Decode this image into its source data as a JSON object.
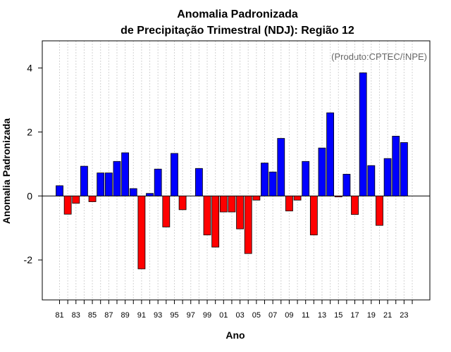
{
  "chart_data": {
    "type": "bar",
    "title": "Anomalia Padronizada",
    "subtitle": "de Precipitação Trimestral (NDJ): Região 12",
    "xlabel": "Ano",
    "ylabel": "Anomalia Padronizada",
    "source_note": "(Produto:CPTEC/INPE)",
    "ylim": [
      -3.25,
      4.85
    ],
    "yticks": [
      "-2",
      "0",
      "2",
      "4"
    ],
    "ytick_values": [
      -2,
      0,
      2,
      4
    ],
    "xtick_labels": [
      "81",
      "83",
      "85",
      "87",
      "89",
      "91",
      "93",
      "95",
      "97",
      "99",
      "01",
      "03",
      "05",
      "07",
      "09",
      "11",
      "13",
      "15",
      "17",
      "19",
      "21",
      "23"
    ],
    "grid": "vertical dotted",
    "positive_color": "#0000ff",
    "negative_color": "#ff0000",
    "categories": [
      "81",
      "82",
      "83",
      "84",
      "85",
      "86",
      "87",
      "88",
      "89",
      "90",
      "91",
      "92",
      "93",
      "94",
      "95",
      "96",
      "97",
      "98",
      "99",
      "00",
      "01",
      "02",
      "03",
      "04",
      "05",
      "06",
      "07",
      "08",
      "09",
      "10",
      "11",
      "12",
      "13",
      "14",
      "15",
      "16",
      "17",
      "18",
      "19",
      "20",
      "21",
      "22",
      "23",
      "24"
    ],
    "values": [
      0.32,
      -0.57,
      -0.23,
      0.93,
      -0.18,
      0.72,
      0.72,
      1.08,
      1.35,
      0.23,
      -2.28,
      0.08,
      0.84,
      -0.97,
      1.33,
      -0.43,
      0.0,
      0.86,
      -1.22,
      -1.6,
      -0.5,
      -0.5,
      -1.03,
      -1.8,
      -0.13,
      1.03,
      0.75,
      1.8,
      -0.47,
      -0.13,
      1.08,
      -1.22,
      1.5,
      2.6,
      -0.03,
      0.68,
      -0.58,
      3.85,
      0.95,
      -0.92,
      1.17,
      1.87,
      1.67,
      null
    ]
  }
}
